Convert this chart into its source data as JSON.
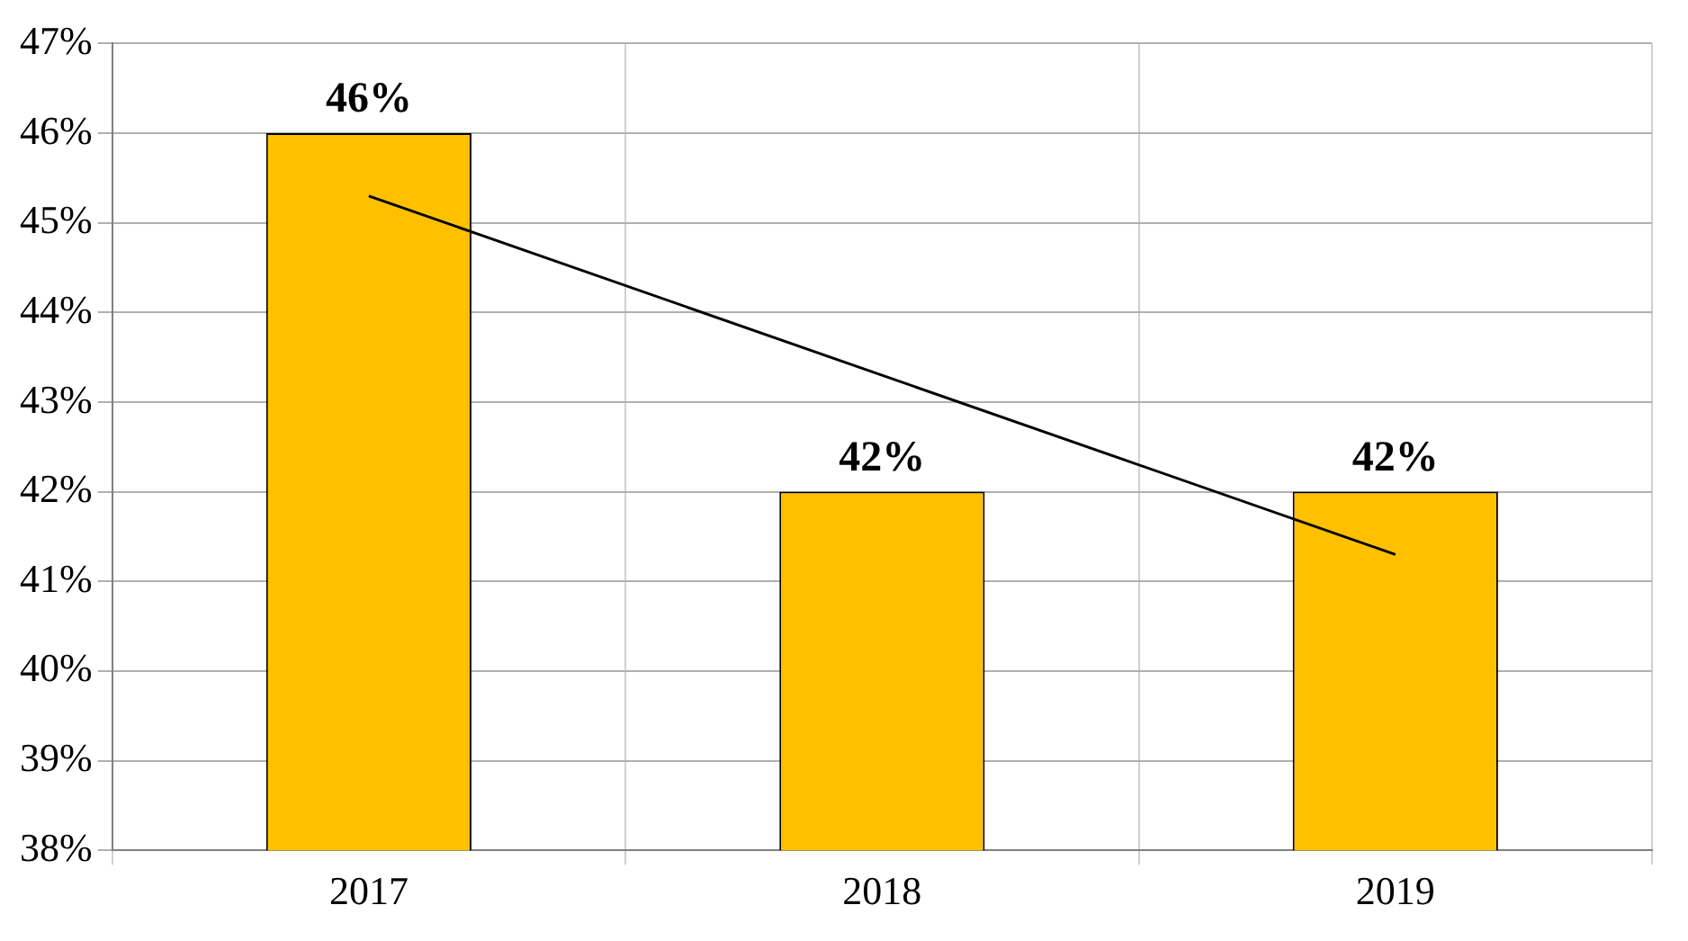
{
  "chart_data": {
    "type": "bar",
    "categories": [
      "2017",
      "2018",
      "2019"
    ],
    "series": [
      {
        "color": "#ffc000",
        "values": [
          46,
          42,
          42
        ],
        "value_labels": [
          "46%",
          "42%",
          "42%"
        ]
      },
      {
        "type": "line",
        "color": "#000000",
        "values": [
          45.3,
          43.3,
          41.3
        ],
        "marker": "none"
      }
    ],
    "ylim": [
      38,
      47
    ],
    "yticks": [
      {
        "value": 38,
        "label": "38%"
      },
      {
        "value": 39,
        "label": "39%"
      },
      {
        "value": 40,
        "label": "40%"
      },
      {
        "value": 41,
        "label": "41%"
      },
      {
        "value": 42,
        "label": "42%"
      },
      {
        "value": 43,
        "label": "43%"
      },
      {
        "value": 44,
        "label": "44%"
      },
      {
        "value": 45,
        "label": "45%"
      },
      {
        "value": 46,
        "label": "46%"
      },
      {
        "value": 47,
        "label": "47%"
      }
    ],
    "grid": true,
    "legend": false
  }
}
